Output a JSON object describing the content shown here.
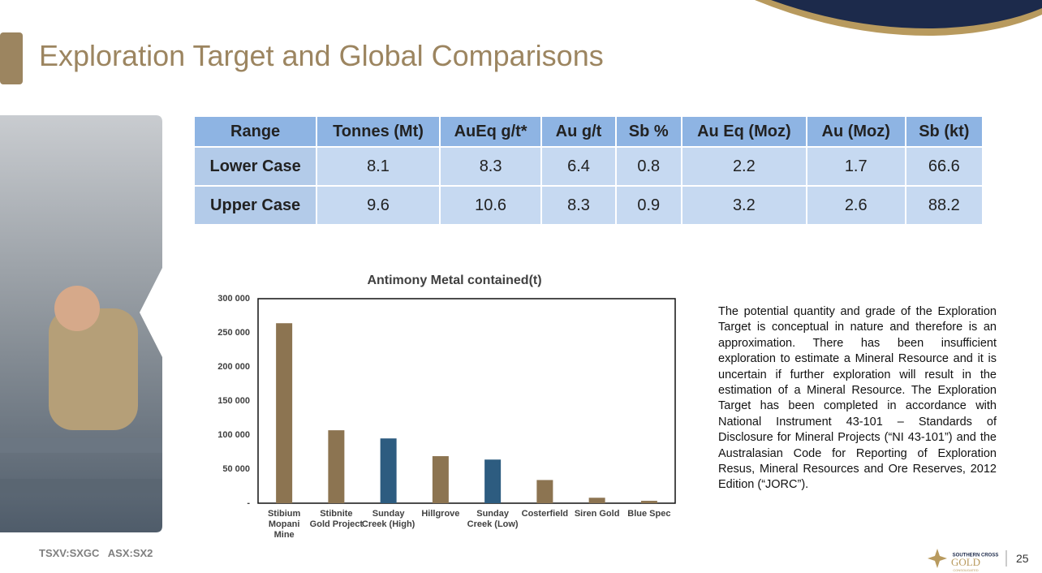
{
  "header": {
    "title": "Exploration Target and Global Comparisons"
  },
  "table": {
    "header": [
      "Range",
      "Tonnes (Mt)",
      "AuEq g/t*",
      "Au g/t",
      "Sb %",
      "Au Eq (Moz)",
      "Au (Moz)",
      "Sb (kt)"
    ],
    "rows": [
      [
        "Lower Case",
        "8.1",
        "8.3",
        "6.4",
        "0.8",
        "2.2",
        "1.7",
        "66.6"
      ],
      [
        "Upper Case",
        "9.6",
        "10.6",
        "8.3",
        "0.9",
        "3.2",
        "2.6",
        "88.2"
      ]
    ]
  },
  "chart_data": {
    "type": "bar",
    "title": "Antimony Metal contained(t)",
    "categories": [
      "Stibium Mopani Mine",
      "Stibnite Gold Project",
      "Sunday Creek (High)",
      "Hillgrove",
      "Sunday Creek (Low)",
      "Costerfield",
      "Siren Gold",
      "Blue Spec"
    ],
    "values": [
      264000,
      107000,
      95000,
      69000,
      64000,
      34000,
      8000,
      3500
    ],
    "colors": [
      "#8c7451",
      "#8c7451",
      "#2d5c80",
      "#8c7451",
      "#2d5c80",
      "#8c7451",
      "#8c7451",
      "#8c7451"
    ],
    "ylim": [
      0,
      300000
    ],
    "yticks": [
      {
        "value": 0,
        "label": "-"
      },
      {
        "value": 50000,
        "label": "50 000"
      },
      {
        "value": 100000,
        "label": "100 000"
      },
      {
        "value": 150000,
        "label": "150 000"
      },
      {
        "value": 200000,
        "label": "200 000"
      },
      {
        "value": 250000,
        "label": "250 000"
      },
      {
        "value": 300000,
        "label": "300 000"
      }
    ],
    "grid": false
  },
  "paragraph": "The potential quantity and grade of the Exploration Target is conceptual in nature and therefore is an approximation. There has been insufficient exploration to estimate a Mineral Resource and it is uncertain if further exploration will result in the estimation of a Mineral Resource. The Exploration Target has been completed in accordance with National Instrument 43-101 – Standards of Disclosure for Mineral Projects (“NI 43-101”) and the Australasian Code for Reporting of Exploration Resus, Mineral Resources and Ore Reserves, 2012 Edition (“JORC”).",
  "footer": {
    "tickers": "TSXV:SXGC   ASX:SX2",
    "logo_top": "SOUTHERN CROSS",
    "logo_main": "GOLD",
    "logo_sub": "CONSOLIDATED",
    "page": "25"
  }
}
